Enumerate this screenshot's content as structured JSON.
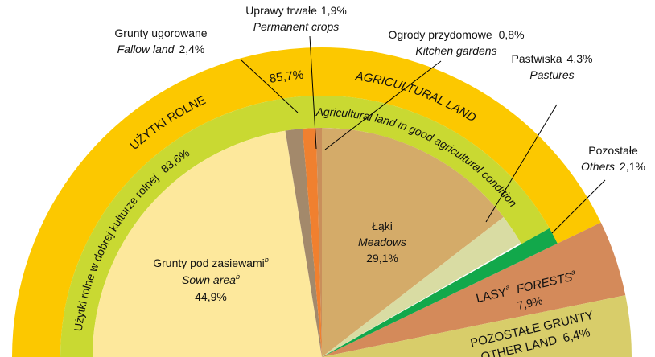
{
  "chart_data": {
    "type": "semi_donut",
    "outer": [
      {
        "name_pl": "UŻYTKI ROLNE",
        "name_en": "AGRICULTURAL LAND",
        "value": 85.7,
        "value_label": "85,7%",
        "color": "#fcc800"
      },
      {
        "name_pl": "LASY",
        "name_en": "FORESTS",
        "note": "a",
        "value": 7.9,
        "value_label": "7,9%",
        "color": "#d48a5a"
      },
      {
        "name_pl": "POZOSTAŁE GRUNTY",
        "name_en": "OTHER LAND",
        "value": 6.4,
        "value_label": "6,4%",
        "color": "#d8cd6a"
      }
    ],
    "middle": [
      {
        "name_pl": "Użytki rolne w dobrej kulturze rolnej",
        "name_en": "Agricultural land in good agricultural condition",
        "value": 83.6,
        "value_label": "83,6%",
        "color": "#c9d932"
      },
      {
        "name_pl": "Pozostałe",
        "name_en": "Others",
        "value": 2.1,
        "value_label": "2,1%",
        "color": "#12a84b"
      }
    ],
    "inner": [
      {
        "name_pl": "Grunty pod zasiewami",
        "name_en": "Sown area",
        "note": "b",
        "value": 44.9,
        "value_label": "44,9%",
        "color": "#fde89c"
      },
      {
        "name_pl": "Grunty ugorowane",
        "name_en": "Fallow land",
        "value": 2.4,
        "value_label": "2,4%",
        "color": "#a3896b"
      },
      {
        "name_pl": "Uprawy trwałe",
        "name_en": "Permanent crops",
        "value": 1.9,
        "value_label": "1,9%",
        "color": "#f0802f"
      },
      {
        "name_pl": "Ogrody przydomowe",
        "name_en": "Kitchen gardens",
        "value": 0.8,
        "value_label": "0,8%",
        "color": "#c98f5b"
      },
      {
        "name_pl": "Łąki",
        "name_en": "Meadows",
        "value": 29.1,
        "value_label": "29,1%",
        "color": "#d4ab69"
      },
      {
        "name_pl": "Pastwiska",
        "name_en": "Pastures",
        "value": 4.3,
        "value_label": "4,3%",
        "color": "#d9dca3"
      }
    ]
  }
}
